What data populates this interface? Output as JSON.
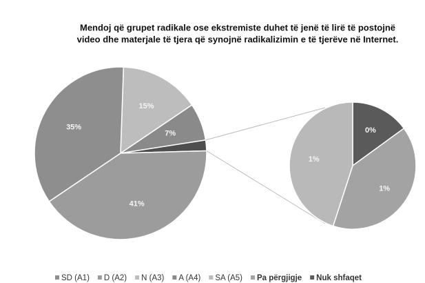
{
  "chart_data": {
    "type": "pie-of-pie",
    "title": [
      "Mendoj që grupet radikale ose ekstremiste duhet të jenë të lirë të postojnë",
      "video dhe materjale të tjera që synojnë radikalizimin e të tjerëve në Internet."
    ],
    "categories": [
      "SD (A1)",
      "D (A2)",
      "N (A3)",
      "A (A4)",
      "SA (A5)",
      "Pa përgjigje",
      "Nuk shfaqet"
    ],
    "values": [
      35,
      41,
      15,
      7,
      0.9,
      0.8,
      0.3
    ],
    "value_labels": [
      "35%",
      "41%",
      "15%",
      "7%",
      "1%",
      "1%",
      "0%"
    ],
    "colors": [
      "#8e8e8e",
      "#9c9c9c",
      "#bdbdbd",
      "#8a8a8a",
      "#b9b9b9",
      "#a3a3a3",
      "#5a5a5a"
    ],
    "legend": "bottom"
  }
}
